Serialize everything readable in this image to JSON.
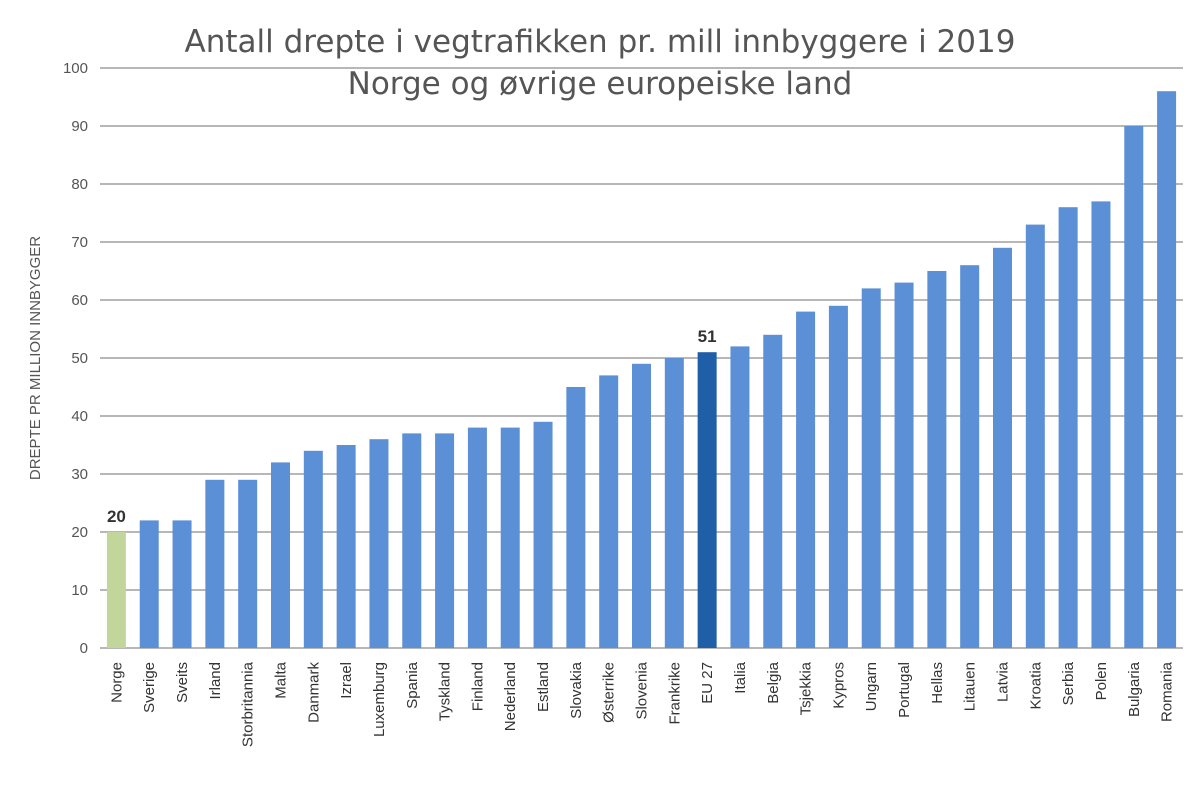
{
  "chart_data": {
    "type": "bar",
    "title": "Antall drepte i vegtrafikken pr. mill innbyggere i 2019",
    "subtitle": "Norge og øvrige europeiske land",
    "xlabel": "",
    "ylabel": "DREPTE PR MILLION INNBYGGER",
    "ylim": [
      0,
      100
    ],
    "yticks": [
      0,
      10,
      20,
      30,
      40,
      50,
      60,
      70,
      80,
      90,
      100
    ],
    "grid": true,
    "categories": [
      "Norge",
      "Sverige",
      "Sveits",
      "Irland",
      "Storbritannia",
      "Malta",
      "Danmark",
      "Izrael",
      "Luxemburg",
      "Spania",
      "Tyskland",
      "Finland",
      "Nederland",
      "Estland",
      "Slovakia",
      "Østerrike",
      "Slovenia",
      "Frankrike",
      "EU 27",
      "Italia",
      "Belgia",
      "Tsjekkia",
      "Kypros",
      "Ungarn",
      "Portugal",
      "Hellas",
      "Litauen",
      "Latvia",
      "Kroatia",
      "Serbia",
      "Polen",
      "Bulgaria",
      "Romania"
    ],
    "values": [
      20,
      22,
      22,
      29,
      29,
      32,
      34,
      35,
      36,
      37,
      37,
      38,
      38,
      39,
      45,
      47,
      49,
      50,
      51,
      52,
      54,
      58,
      59,
      62,
      63,
      65,
      66,
      69,
      73,
      76,
      77,
      90,
      96
    ],
    "data_labels": [
      {
        "category": "Norge",
        "text": "20"
      },
      {
        "category": "EU 27",
        "text": "51"
      }
    ],
    "colors": {
      "default": "#5b8fd6",
      "highlight_norge": "#c2d69b",
      "highlight_eu": "#1f5fa8",
      "grid": "#8c8c8c"
    }
  }
}
